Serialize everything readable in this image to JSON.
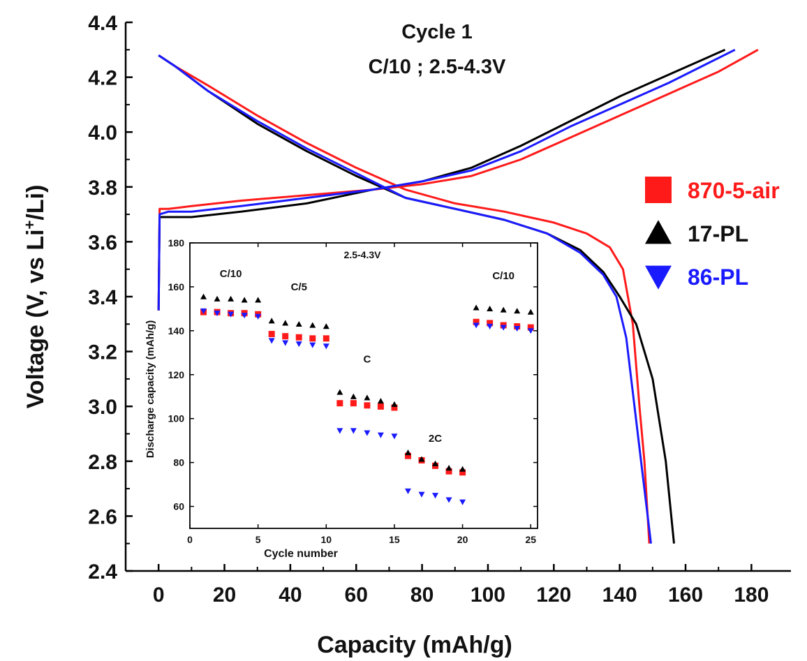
{
  "chart_data": [
    {
      "type": "line",
      "title": "Cycle 1",
      "subtitle": "C/10 ; 2.5-4.3V",
      "xlabel": "Capacity (mAh/g)",
      "ylabel_main": "Voltage (V, vs Li",
      "ylabel_sup": "+",
      "ylabel_end": "/Li)",
      "xlim": [
        -10,
        192
      ],
      "ylim": [
        2.4,
        4.4
      ],
      "xticks": [
        0,
        20,
        40,
        60,
        80,
        100,
        120,
        140,
        160,
        180
      ],
      "yticks": [
        2.4,
        2.6,
        2.8,
        3.0,
        3.2,
        3.4,
        3.6,
        3.8,
        4.0,
        4.2,
        4.4
      ],
      "ytick_labels": [
        "2.4",
        "2.6",
        "2.8",
        "3.0",
        "3.2",
        "3.4",
        "3.6",
        "3.8",
        "4.0",
        "4.2",
        "4.4"
      ],
      "legend_position": "right",
      "series": [
        {
          "name": "870-5-air",
          "color": "#ff1a1a",
          "marker": "square",
          "charge": [
            [
              0,
              3.35
            ],
            [
              0.3,
              3.72
            ],
            [
              3,
              3.72
            ],
            [
              10,
              3.73
            ],
            [
              25,
              3.75
            ],
            [
              45,
              3.77
            ],
            [
              65,
              3.79
            ],
            [
              80,
              3.81
            ],
            [
              95,
              3.84
            ],
            [
              110,
              3.9
            ],
            [
              125,
              3.98
            ],
            [
              140,
              4.06
            ],
            [
              155,
              4.14
            ],
            [
              170,
              4.22
            ],
            [
              182,
              4.3
            ]
          ],
          "discharge": [
            [
              0,
              4.28
            ],
            [
              5,
              4.24
            ],
            [
              15,
              4.17
            ],
            [
              30,
              4.06
            ],
            [
              45,
              3.96
            ],
            [
              60,
              3.87
            ],
            [
              75,
              3.79
            ],
            [
              90,
              3.74
            ],
            [
              105,
              3.71
            ],
            [
              120,
              3.67
            ],
            [
              130,
              3.63
            ],
            [
              137,
              3.58
            ],
            [
              141,
              3.5
            ],
            [
              144,
              3.3
            ],
            [
              146,
              3.0
            ],
            [
              147.5,
              2.8
            ],
            [
              149,
              2.5
            ]
          ]
        },
        {
          "name": "17-PL",
          "color": "#000000",
          "marker": "triangle-up",
          "charge": [
            [
              0,
              3.35
            ],
            [
              0.3,
              3.69
            ],
            [
              3,
              3.69
            ],
            [
              10,
              3.69
            ],
            [
              25,
              3.71
            ],
            [
              45,
              3.74
            ],
            [
              65,
              3.79
            ],
            [
              80,
              3.82
            ],
            [
              95,
              3.87
            ],
            [
              110,
              3.95
            ],
            [
              125,
              4.04
            ],
            [
              140,
              4.13
            ],
            [
              155,
              4.21
            ],
            [
              172,
              4.3
            ]
          ],
          "discharge": [
            [
              0,
              4.28
            ],
            [
              5,
              4.24
            ],
            [
              15,
              4.15
            ],
            [
              30,
              4.03
            ],
            [
              45,
              3.93
            ],
            [
              60,
              3.84
            ],
            [
              75,
              3.76
            ],
            [
              90,
              3.72
            ],
            [
              105,
              3.68
            ],
            [
              118,
              3.63
            ],
            [
              128,
              3.57
            ],
            [
              135,
              3.49
            ],
            [
              140,
              3.4
            ],
            [
              145,
              3.3
            ],
            [
              150,
              3.1
            ],
            [
              154,
              2.8
            ],
            [
              156.5,
              2.5
            ]
          ]
        },
        {
          "name": "86-PL",
          "color": "#1a1aff",
          "marker": "triangle-down",
          "charge": [
            [
              0,
              3.35
            ],
            [
              0.3,
              3.7
            ],
            [
              3,
              3.71
            ],
            [
              10,
              3.71
            ],
            [
              25,
              3.73
            ],
            [
              45,
              3.76
            ],
            [
              65,
              3.79
            ],
            [
              80,
              3.82
            ],
            [
              95,
              3.86
            ],
            [
              110,
              3.93
            ],
            [
              125,
              4.02
            ],
            [
              140,
              4.1
            ],
            [
              155,
              4.18
            ],
            [
              175,
              4.3
            ]
          ],
          "discharge": [
            [
              0,
              4.28
            ],
            [
              5,
              4.24
            ],
            [
              15,
              4.15
            ],
            [
              30,
              4.04
            ],
            [
              45,
              3.94
            ],
            [
              60,
              3.85
            ],
            [
              75,
              3.76
            ],
            [
              90,
              3.72
            ],
            [
              105,
              3.68
            ],
            [
              118,
              3.63
            ],
            [
              128,
              3.56
            ],
            [
              135,
              3.48
            ],
            [
              139,
              3.4
            ],
            [
              142,
              3.25
            ],
            [
              144.5,
              3.0
            ],
            [
              146.5,
              2.8
            ],
            [
              149.5,
              2.5
            ]
          ]
        }
      ]
    },
    {
      "type": "scatter",
      "title": "2.5-4.3V",
      "xlabel": "Cycle number",
      "ylabel": "Discharge capacity (mAh/g)",
      "xlim": [
        0,
        25.5
      ],
      "ylim": [
        50,
        180
      ],
      "xticks": [
        0,
        5,
        10,
        15,
        20,
        25
      ],
      "yticks": [
        60,
        80,
        100,
        120,
        140,
        160,
        180
      ],
      "annotations": [
        {
          "text": "C/10",
          "x": 3,
          "y": 166
        },
        {
          "text": "C/5",
          "x": 8,
          "y": 160
        },
        {
          "text": "C",
          "x": 13,
          "y": 127
        },
        {
          "text": "2C",
          "x": 18,
          "y": 91
        },
        {
          "text": "C/10",
          "x": 23,
          "y": 165
        }
      ],
      "series": [
        {
          "name": "870-5-air",
          "color": "#ff1a1a",
          "marker": "square",
          "x": [
            1,
            2,
            3,
            4,
            5,
            6,
            7,
            8,
            9,
            10,
            11,
            12,
            13,
            14,
            15,
            16,
            17,
            18,
            19,
            20,
            21,
            22,
            23,
            24,
            25
          ],
          "values": [
            148.5,
            148.5,
            148,
            148,
            147.5,
            138.5,
            137.5,
            137,
            136.5,
            136.5,
            107,
            107,
            106,
            105.5,
            105,
            83,
            81,
            78.5,
            76,
            75.5,
            144,
            143.5,
            142.5,
            142,
            141.5
          ]
        },
        {
          "name": "17-PL",
          "color": "#000000",
          "marker": "triangle-up",
          "x": [
            1,
            2,
            3,
            4,
            5,
            6,
            7,
            8,
            9,
            10,
            11,
            12,
            13,
            14,
            15,
            16,
            17,
            18,
            19,
            20,
            21,
            22,
            23,
            24,
            25
          ],
          "values": [
            155.5,
            154.5,
            154.5,
            154,
            154,
            144.5,
            143.5,
            143,
            142.5,
            142,
            112,
            110,
            109.5,
            108,
            106.5,
            84.5,
            81.5,
            79.5,
            77.5,
            77,
            150.5,
            150,
            149.5,
            149,
            148.5
          ]
        },
        {
          "name": "86-PL",
          "color": "#1a1aff",
          "marker": "triangle-down",
          "x": [
            1,
            2,
            3,
            4,
            5,
            6,
            7,
            8,
            9,
            10,
            11,
            12,
            13,
            14,
            15,
            16,
            17,
            18,
            19,
            20,
            21,
            22,
            23,
            24,
            25
          ],
          "values": [
            149,
            148,
            147.5,
            147,
            146.5,
            135.5,
            134.5,
            134,
            133.5,
            133,
            94.5,
            94.5,
            93.5,
            92.5,
            92,
            67,
            65.5,
            65,
            63,
            62,
            142.5,
            142,
            141.5,
            141,
            140
          ]
        }
      ]
    }
  ]
}
